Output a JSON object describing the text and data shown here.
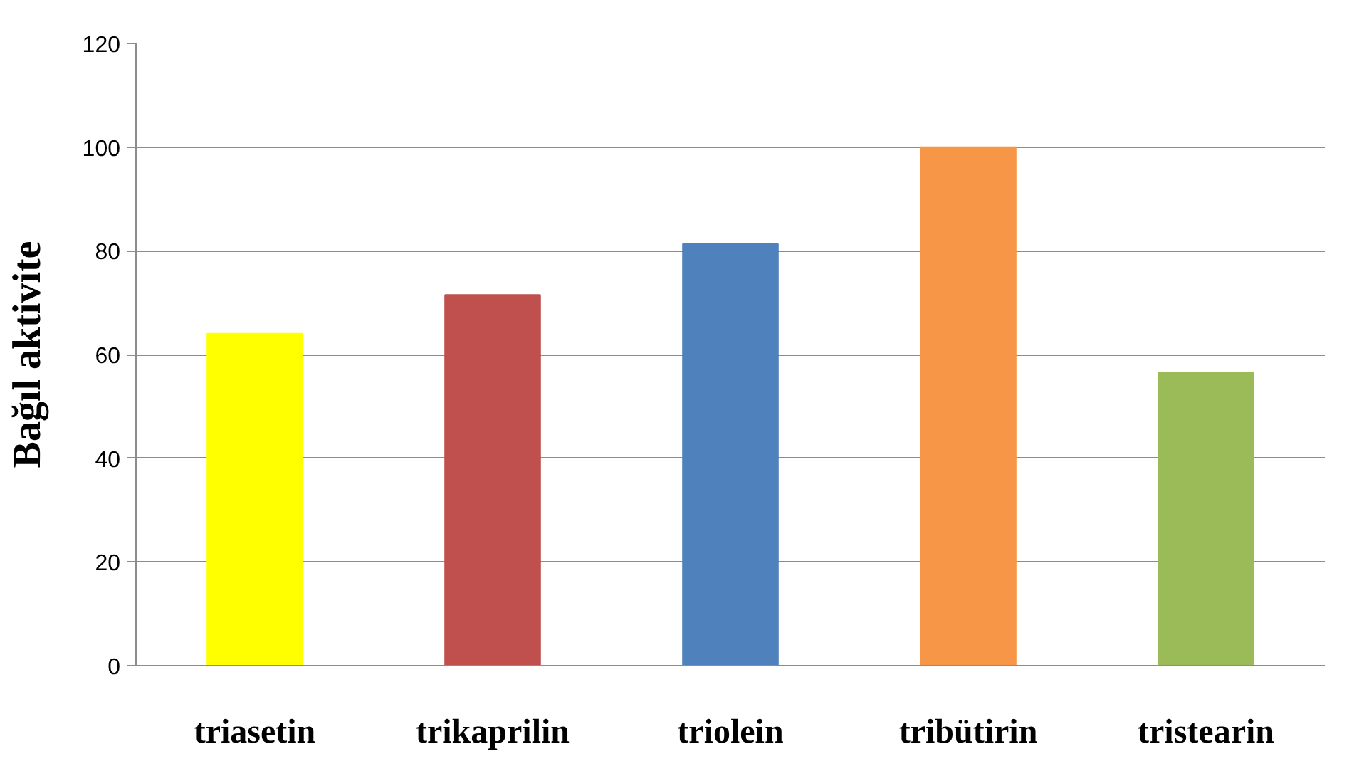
{
  "chart_data": {
    "type": "bar",
    "ylabel": "Bağıl aktivite",
    "categories": [
      "triasetin",
      "trikaprilin",
      "triolein",
      "tribütirin",
      "tristearin"
    ],
    "values": [
      64,
      71.5,
      81.3,
      100,
      56.5
    ],
    "colors": [
      "#ffff00",
      "#c0504d",
      "#4f81bd",
      "#f79646",
      "#9bbb59"
    ],
    "ylim": [
      0,
      120
    ],
    "yticks": [
      0,
      20,
      40,
      60,
      80,
      100,
      120
    ],
    "grid": "y"
  }
}
